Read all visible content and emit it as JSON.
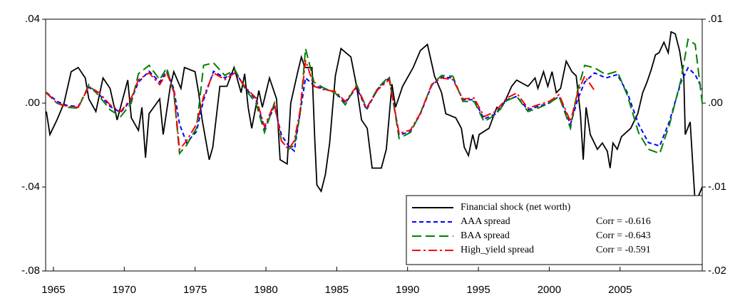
{
  "chart_data": {
    "type": "line",
    "xlim": [
      1964.45,
      2010.8
    ],
    "xticks": [
      1965,
      1970,
      1975,
      1980,
      1985,
      1990,
      1995,
      2000,
      2005
    ],
    "ylim": [
      -0.08,
      0.04
    ],
    "yticks": [
      {
        "value": -0.08,
        "label": "-.08"
      },
      {
        "value": -0.04,
        "label": "-.04"
      },
      {
        "value": 0,
        "label": ".00"
      },
      {
        "value": 0.04,
        "label": ".04"
      }
    ],
    "y2lim": [
      -0.02,
      0.01
    ],
    "y2ticks": [
      {
        "value": -0.02,
        "label": "-.02"
      },
      {
        "value": -0.01,
        "label": "-.01"
      },
      {
        "value": 0,
        "label": ".00"
      },
      {
        "value": 0.01,
        "label": ".01"
      }
    ],
    "legend": "bottom-right",
    "series": [
      {
        "name": "Financial shock (net worth)",
        "color": "#000000",
        "dash": "solid",
        "axis": "y",
        "x": [
          1964.5,
          1964.75,
          1965.25,
          1965.75,
          1966.25,
          1966.75,
          1967.25,
          1967.5,
          1968,
          1968.5,
          1969,
          1969.5,
          1970.25,
          1970.5,
          1971,
          1971.25,
          1971.5,
          1971.75,
          1972.5,
          1972.75,
          1973.25,
          1973.5,
          1974,
          1974.25,
          1975,
          1975.25,
          1975.5,
          1976,
          1976.25,
          1976.75,
          1977.25,
          1977.75,
          1978.25,
          1978.5,
          1978.75,
          1979,
          1979.5,
          1979.75,
          1980.25,
          1980.75,
          1981,
          1981.5,
          1981.75,
          1982.25,
          1982.5,
          1982.75,
          1983.25,
          1983.45,
          1983.6,
          1983.9,
          1984.2,
          1984.5,
          1984.9,
          1985.3,
          1986,
          1986.4,
          1986.75,
          1987.15,
          1987.5,
          1988.15,
          1988.5,
          1988.9,
          1989.15,
          1989.65,
          1990.4,
          1990.9,
          1991.4,
          1991.7,
          1991.9,
          1992.4,
          1992.7,
          1993.4,
          1993.8,
          1994,
          1994.3,
          1994.6,
          1994.85,
          1995.05,
          1995.75,
          1996.3,
          1996.55,
          1996.95,
          1997.35,
          1997.7,
          1998.5,
          1999,
          1999.2,
          1999.6,
          1999.9,
          2000.2,
          2000.5,
          2000.8,
          2001.2,
          2001.6,
          2001.9,
          2002.2,
          2002.4,
          2002.6,
          2002.9,
          2003.4,
          2003.75,
          2004.1,
          2004.3,
          2004.5,
          2004.8,
          2005.1,
          2005.75,
          2006.25,
          2006.6,
          2006.9,
          2007.2,
          2007.5,
          2007.75,
          2008.1,
          2008.4,
          2008.6,
          2008.9,
          2009.2,
          2009.5,
          2009.6,
          2009.95,
          2010.3,
          2010.8
        ],
        "values": [
          -0.004,
          -0.015,
          -0.008,
          0.0,
          0.015,
          0.017,
          0.012,
          0.002,
          -0.004,
          0.012,
          0.007,
          -0.008,
          0.011,
          -0.007,
          -0.013,
          -0.002,
          -0.026,
          -0.005,
          0.002,
          -0.015,
          0.008,
          0.015,
          0.007,
          0.017,
          0.015,
          0.005,
          -0.008,
          -0.027,
          -0.021,
          0.008,
          0.008,
          0.017,
          0.005,
          0.014,
          -0.002,
          -0.012,
          0.006,
          -0.002,
          0.012,
          0.002,
          -0.027,
          -0.029,
          0.0,
          0.015,
          0.022,
          0.017,
          0.017,
          -0.017,
          -0.039,
          -0.042,
          -0.034,
          -0.019,
          0.013,
          0.026,
          0.022,
          0.008,
          -0.008,
          -0.012,
          -0.031,
          -0.031,
          -0.022,
          0.009,
          -0.002,
          0.008,
          0.017,
          0.025,
          0.028,
          0.019,
          0.013,
          0.005,
          -0.005,
          -0.007,
          -0.012,
          -0.021,
          -0.025,
          -0.015,
          -0.022,
          -0.015,
          -0.012,
          -0.002,
          -0.003,
          0.002,
          0.008,
          0.011,
          0.008,
          0.012,
          0.007,
          0.015,
          0.008,
          0.015,
          0.005,
          0.007,
          0.02,
          0.015,
          0.013,
          -0.005,
          -0.027,
          -0.002,
          -0.015,
          -0.022,
          -0.019,
          -0.023,
          -0.031,
          -0.019,
          -0.022,
          -0.016,
          -0.012,
          -0.005,
          0.005,
          0.01,
          0.016,
          0.023,
          0.024,
          0.029,
          0.024,
          0.034,
          0.033,
          0.025,
          0.012,
          -0.015,
          -0.009,
          -0.048,
          -0.04
        ]
      },
      {
        "name": "AAA spread",
        "annotation": "Corr = -0.616",
        "color": "#0000ff",
        "dash": "6,4",
        "axis": "y2",
        "x": [
          1964.5,
          1965.25,
          1966,
          1966.75,
          1967.5,
          1968.25,
          1969,
          1969.75,
          1970.5,
          1971,
          1971.75,
          1972.5,
          1973,
          1973.5,
          1973.9,
          1974.4,
          1975.1,
          1975.6,
          1976.3,
          1977.1,
          1977.8,
          1978.6,
          1979.3,
          1979.9,
          1980.6,
          1981.1,
          1981.6,
          1982,
          1982.4,
          1982.8,
          1983.4,
          1984.1,
          1984.9,
          1985.6,
          1986.4,
          1987.1,
          1987.9,
          1988.7,
          1989.4,
          1990.2,
          1990.9,
          1991.7,
          1992.4,
          1993.2,
          1993.9,
          1994.7,
          1995.4,
          1996.2,
          1997,
          1997.7,
          1998.5,
          1999.2,
          2000,
          2000.7,
          2001.5,
          2002,
          2002.5,
          2003.2,
          2004,
          2004.8,
          2005.5,
          2006.3,
          2007,
          2007.8,
          2008.5,
          2009.3,
          2009.8,
          2010.3,
          2010.8
        ],
        "values": [
          0.0013,
          0.0002,
          -0.0003,
          -0.0004,
          0.0019,
          0.001,
          -0.0004,
          -0.0011,
          0.0004,
          0.0025,
          0.0038,
          0.0025,
          0.0038,
          0.0017,
          -0.0025,
          -0.0047,
          -0.0034,
          0.0004,
          0.0038,
          0.003,
          0.0038,
          0.0017,
          0.0004,
          -0.003,
          -0.0004,
          -0.0038,
          -0.0051,
          -0.0057,
          -0.0013,
          0.003,
          0.0021,
          0.0017,
          0.0013,
          0.0,
          0.0019,
          -0.0008,
          0.0017,
          0.003,
          -0.0038,
          -0.0034,
          -0.0013,
          0.0021,
          0.0031,
          0.003,
          0.0004,
          0.0004,
          -0.0019,
          -0.0013,
          0.0004,
          0.0008,
          -0.0008,
          -0.0004,
          0.0,
          0.0008,
          -0.0025,
          0.0004,
          0.0025,
          0.0036,
          0.003,
          0.0034,
          0.0013,
          -0.0025,
          -0.0047,
          -0.0051,
          -0.0021,
          0.0025,
          0.0042,
          0.0034,
          0.0017
        ]
      },
      {
        "name": "BAA spread",
        "annotation": "Corr = -0.643",
        "color": "#008000",
        "dash": "13,6",
        "axis": "y2",
        "x": [
          1964.5,
          1965.25,
          1966,
          1966.75,
          1967.5,
          1968.25,
          1969,
          1969.75,
          1970.5,
          1971,
          1971.75,
          1972.5,
          1973,
          1973.5,
          1973.9,
          1974.4,
          1975.1,
          1975.6,
          1976.3,
          1977.1,
          1977.8,
          1978.6,
          1979.3,
          1979.9,
          1980.6,
          1981.1,
          1981.6,
          1982,
          1982.4,
          1982.8,
          1983.4,
          1984.1,
          1984.9,
          1985.6,
          1986.4,
          1987.1,
          1987.9,
          1988.7,
          1989.4,
          1990.2,
          1990.9,
          1991.7,
          1992.4,
          1993.2,
          1993.9,
          1994.7,
          1995.4,
          1996.2,
          1997,
          1997.7,
          1998.5,
          1999.2,
          2000,
          2000.7,
          2001.5,
          2002,
          2002.5,
          2003.2,
          2004,
          2004.8,
          2005.5,
          2006.3,
          2007,
          2007.8,
          2008.5,
          2009.3,
          2009.8,
          2010.3,
          2010.8
        ],
        "values": [
          0.0013,
          0.0,
          -0.0005,
          -0.0006,
          0.0022,
          0.0008,
          -0.0008,
          -0.0016,
          0.0,
          0.0035,
          0.0045,
          0.0028,
          0.0042,
          0.0012,
          -0.006,
          -0.005,
          -0.003,
          0.0045,
          0.0048,
          0.0033,
          0.004,
          0.0015,
          0.0,
          -0.0035,
          0.0,
          -0.0045,
          -0.0055,
          -0.005,
          -0.0015,
          0.0065,
          0.0025,
          0.0018,
          0.0012,
          -0.0002,
          0.0022,
          -0.0006,
          0.0018,
          0.0032,
          -0.0042,
          -0.0035,
          -0.0012,
          0.0022,
          0.0033,
          0.0032,
          0.0002,
          0.0002,
          -0.0022,
          -0.0014,
          0.0003,
          0.0008,
          -0.001,
          -0.0006,
          0.0,
          0.0008,
          -0.003,
          0.0015,
          0.0045,
          0.0042,
          0.0034,
          0.0038,
          0.001,
          -0.0035,
          -0.0055,
          -0.006,
          -0.0025,
          0.0028,
          0.0076,
          0.007,
          0.0
        ]
      },
      {
        "name": "High_yield spread",
        "annotation": "Corr = -0.591",
        "color": "#ff0000",
        "dash": "12,4,3,4",
        "axis": "y2",
        "x": [
          1964.5,
          1965.25,
          1966,
          1966.75,
          1967.5,
          1968.25,
          1969,
          1969.75,
          1970.5,
          1971,
          1971.75,
          1972.5,
          1973,
          1973.5,
          1973.9,
          1974.4,
          1975.1,
          1975.6,
          1976.3,
          1977.1,
          1977.8,
          1978.6,
          1979.3,
          1979.9,
          1980.6,
          1981.1,
          1981.6,
          1982,
          1982.4,
          1982.8,
          1983.4,
          1984.1,
          1984.9,
          1985.6,
          1986.4,
          1987.1,
          1987.9,
          1988.7,
          1989.4,
          1990.2,
          1990.9,
          1991.7,
          1992.4,
          1993.2,
          1993.9,
          1994.7,
          1995.4,
          1996.2,
          1997,
          1997.7,
          1998.5,
          1999.2,
          2000,
          2000.7,
          2001.5,
          2002,
          2002.5,
          2003.2
        ],
        "values": [
          0.0012,
          0.0,
          -0.0004,
          -0.0005,
          0.002,
          0.0012,
          -0.0002,
          -0.001,
          0.0006,
          0.0028,
          0.0036,
          0.0022,
          0.0036,
          0.0015,
          -0.0055,
          -0.0045,
          -0.0025,
          0.0008,
          0.0036,
          0.0028,
          0.0036,
          0.0018,
          0.0006,
          -0.0028,
          0.0,
          -0.0045,
          -0.0055,
          -0.0045,
          -0.001,
          0.0051,
          0.002,
          0.0016,
          0.0014,
          0.0002,
          0.002,
          -0.0006,
          0.0016,
          0.0028,
          -0.0036,
          -0.0032,
          -0.0012,
          0.0022,
          0.003,
          0.0028,
          0.0005,
          0.0006,
          -0.0016,
          -0.001,
          0.0006,
          0.0012,
          -0.0006,
          -0.0002,
          0.0002,
          0.001,
          -0.0022,
          0.0012,
          0.0032,
          0.0015
        ]
      }
    ]
  }
}
